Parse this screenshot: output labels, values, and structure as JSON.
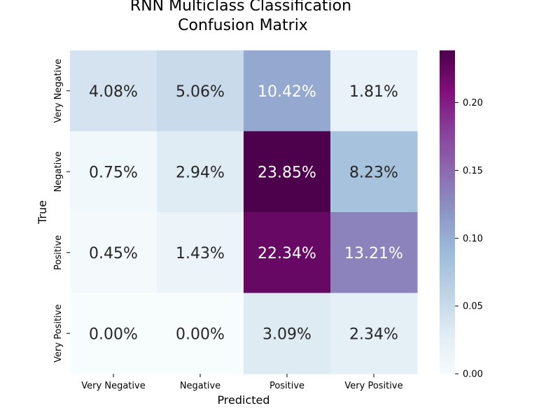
{
  "chart_data": {
    "type": "heatmap",
    "title_lines": [
      "RNN Multiclass Classification",
      "Confusion Matrix"
    ],
    "xlabel": "Predicted",
    "ylabel": "True",
    "x_categories": [
      "Very Negative",
      "Negative",
      "Positive",
      "Very Positive"
    ],
    "y_categories": [
      "Very Negative",
      "Negative",
      "Positive",
      "Very Positive"
    ],
    "values": [
      [
        0.0408,
        0.0506,
        0.1042,
        0.0181
      ],
      [
        0.0075,
        0.0294,
        0.2385,
        0.0823
      ],
      [
        0.0045,
        0.0143,
        0.2234,
        0.1321
      ],
      [
        0.0,
        0.0,
        0.0309,
        0.0234
      ]
    ],
    "annotations": [
      [
        "4.08%",
        "5.06%",
        "10.42%",
        "1.81%"
      ],
      [
        "0.75%",
        "2.94%",
        "23.85%",
        "8.23%"
      ],
      [
        "0.45%",
        "1.43%",
        "22.34%",
        "13.21%"
      ],
      [
        "0.00%",
        "0.00%",
        "3.09%",
        "2.34%"
      ]
    ],
    "colormap": "BuPu",
    "colorbar": {
      "range": [
        0,
        0.2385
      ],
      "ticks": [
        0.0,
        0.05,
        0.1,
        0.15,
        0.2
      ],
      "tick_labels": [
        "0.00",
        "0.05",
        "0.10",
        "0.15",
        "0.20"
      ]
    },
    "grid": false,
    "legend": "none"
  }
}
